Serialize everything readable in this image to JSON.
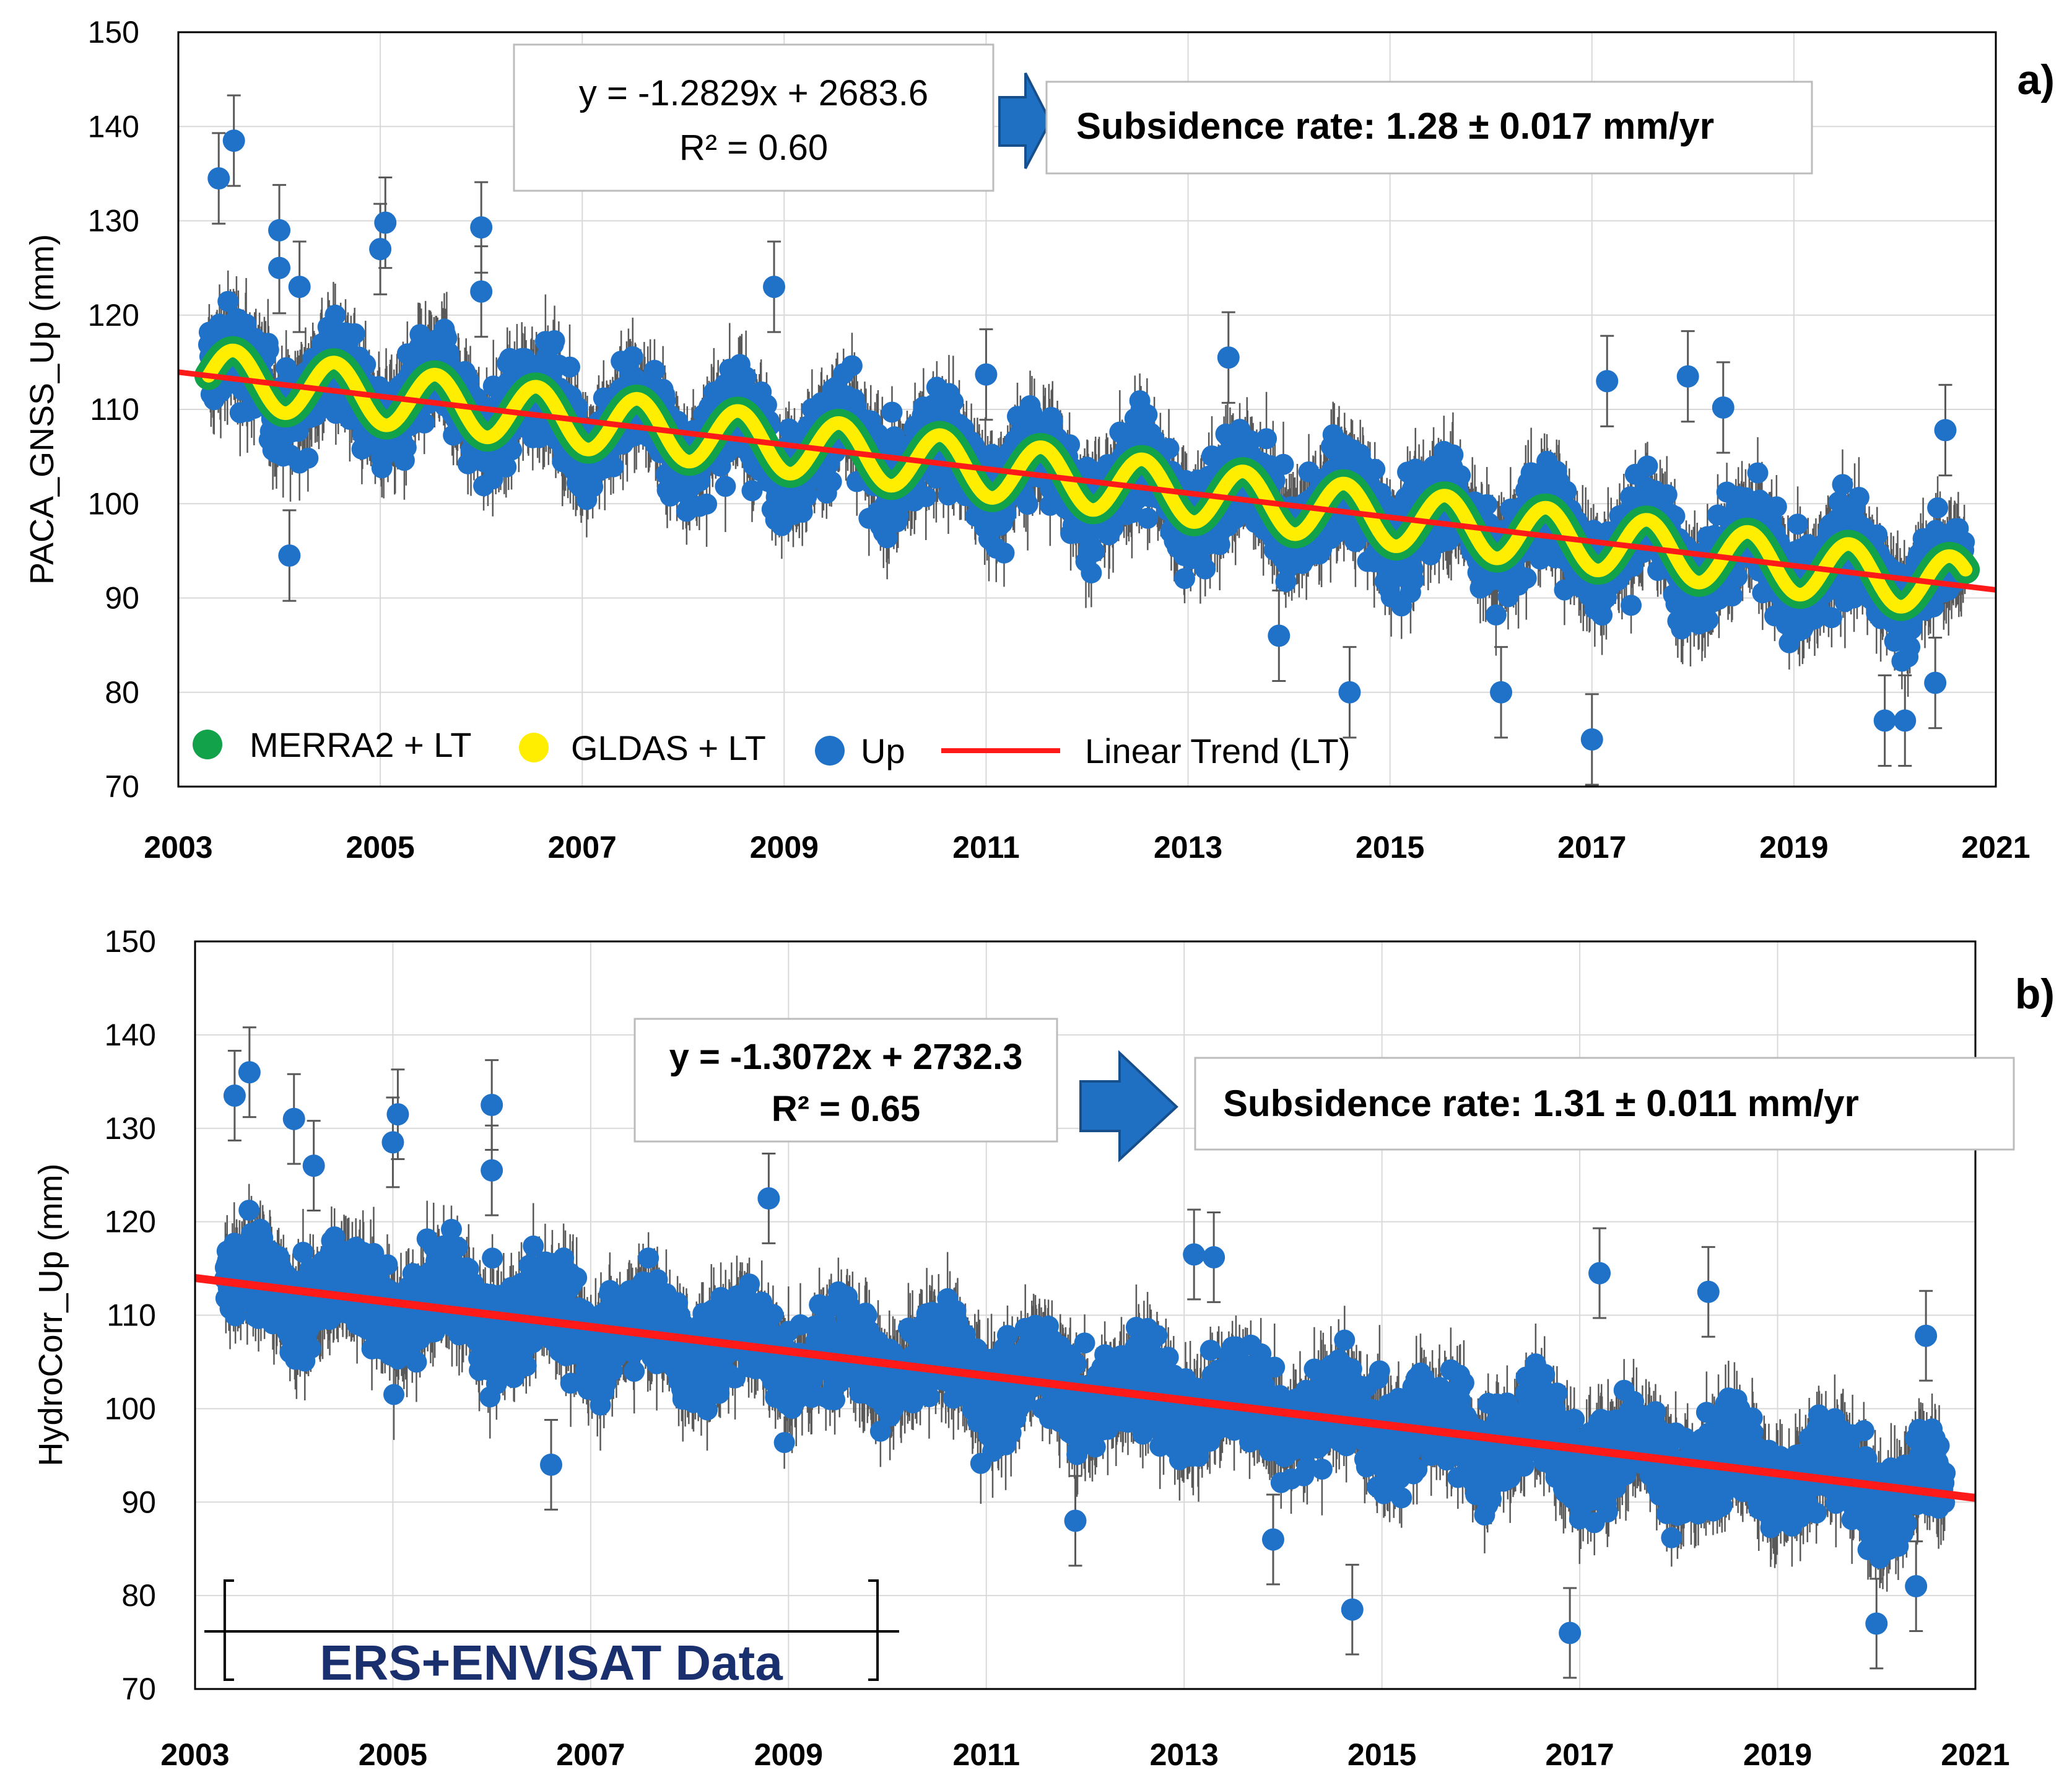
{
  "chart_data": [
    {
      "panel_label": "a)",
      "type": "scatter",
      "ylabel": "PACA_GNSS_Up (mm)",
      "xlim": [
        2003,
        2021
      ],
      "ylim": [
        70,
        150
      ],
      "xticks": [
        "2003",
        "2005",
        "2007",
        "2009",
        "2011",
        "2013",
        "2015",
        "2017",
        "2019",
        "2021"
      ],
      "yticks": [
        "70",
        "80",
        "90",
        "100",
        "110",
        "120",
        "130",
        "140",
        "150"
      ],
      "grid": true,
      "equation": "y = -1.2829x + 2683.6",
      "r2": "R² = 0.60",
      "rate_text": "Subsidence rate: 1.28 ± 0.017 mm/yr",
      "legend": {
        "position": "bottom-left",
        "items": [
          {
            "label": "MERRA2 + LT",
            "color": "#12a24a",
            "kind": "marker"
          },
          {
            "label": "GLDAS + LT",
            "color": "#ffee00",
            "kind": "marker"
          },
          {
            "label": "Up",
            "color": "#1f72c8",
            "kind": "marker"
          },
          {
            "label": "Linear Trend (LT)",
            "color": "#ff1a1a",
            "kind": "line"
          }
        ]
      },
      "trend": {
        "slope": -1.2829,
        "intercept": 2683.6,
        "start_year": 2003.0,
        "end_year": 2021.0,
        "color": "#ff1a1a"
      },
      "seasonal": {
        "amplitude_mm": 3.0,
        "phase_year": 2003.55,
        "period_years": 1.0
      },
      "data_range": {
        "start_year": 2003.3,
        "end_year": 2020.7
      },
      "outliers": [
        {
          "x": 2003.55,
          "y": 138.5
        },
        {
          "x": 2003.4,
          "y": 134.5
        },
        {
          "x": 2004.0,
          "y": 129.0
        },
        {
          "x": 2004.0,
          "y": 125.0
        },
        {
          "x": 2004.2,
          "y": 123.0
        },
        {
          "x": 2005.0,
          "y": 127.0
        },
        {
          "x": 2005.05,
          "y": 129.8
        },
        {
          "x": 2006.0,
          "y": 129.3
        },
        {
          "x": 2006.0,
          "y": 122.5
        },
        {
          "x": 2008.9,
          "y": 123.0
        },
        {
          "x": 2011.0,
          "y": 113.7
        },
        {
          "x": 2013.4,
          "y": 115.5
        },
        {
          "x": 2017.15,
          "y": 113.0
        },
        {
          "x": 2017.95,
          "y": 113.5
        },
        {
          "x": 2018.3,
          "y": 110.2
        },
        {
          "x": 2017.0,
          "y": 75.0
        },
        {
          "x": 2014.6,
          "y": 80.0
        },
        {
          "x": 2016.1,
          "y": 80.0
        },
        {
          "x": 2004.1,
          "y": 94.5
        },
        {
          "x": 2013.9,
          "y": 86.0
        },
        {
          "x": 2020.5,
          "y": 107.8
        },
        {
          "x": 2019.9,
          "y": 77.0
        },
        {
          "x": 2020.1,
          "y": 77.0
        },
        {
          "x": 2020.4,
          "y": 81.0
        }
      ]
    },
    {
      "panel_label": "b)",
      "type": "scatter",
      "ylabel": "HydroCorr_Up (mm)",
      "xlim": [
        2003,
        2021
      ],
      "ylim": [
        70,
        150
      ],
      "xticks": [
        "2003",
        "2005",
        "2007",
        "2009",
        "2011",
        "2013",
        "2015",
        "2017",
        "2019",
        "2021"
      ],
      "yticks": [
        "70",
        "80",
        "90",
        "100",
        "110",
        "120",
        "130",
        "140",
        "150"
      ],
      "grid": true,
      "equation": "y = -1.3072x + 2732.3",
      "r2": "R² = 0.65",
      "rate_text": "Subsidence rate: 1.31 ± 0.011 mm/yr",
      "annotation": {
        "text": "ERS+ENVISAT Data",
        "x_start": 2003.3,
        "x_end": 2009.9
      },
      "trend": {
        "slope": -1.3072,
        "intercept": 2732.3,
        "start_year": 2003.0,
        "end_year": 2021.0,
        "color": "#ff1a1a"
      },
      "data_range": {
        "start_year": 2003.3,
        "end_year": 2020.7
      },
      "outliers": [
        {
          "x": 2003.4,
          "y": 133.5
        },
        {
          "x": 2003.55,
          "y": 136.0
        },
        {
          "x": 2004.0,
          "y": 131.0
        },
        {
          "x": 2004.2,
          "y": 126.0
        },
        {
          "x": 2005.0,
          "y": 128.5
        },
        {
          "x": 2005.05,
          "y": 131.5
        },
        {
          "x": 2006.0,
          "y": 132.5
        },
        {
          "x": 2006.0,
          "y": 125.5
        },
        {
          "x": 2008.8,
          "y": 122.5
        },
        {
          "x": 2013.1,
          "y": 116.5
        },
        {
          "x": 2013.3,
          "y": 116.2
        },
        {
          "x": 2017.2,
          "y": 114.5
        },
        {
          "x": 2018.3,
          "y": 112.5
        },
        {
          "x": 2011.9,
          "y": 88.0
        },
        {
          "x": 2014.7,
          "y": 78.5
        },
        {
          "x": 2016.9,
          "y": 76.0
        },
        {
          "x": 2006.6,
          "y": 94.0
        },
        {
          "x": 2013.9,
          "y": 86.0
        },
        {
          "x": 2020.5,
          "y": 107.8
        },
        {
          "x": 2020.0,
          "y": 77.0
        },
        {
          "x": 2020.4,
          "y": 81.0
        }
      ]
    }
  ]
}
